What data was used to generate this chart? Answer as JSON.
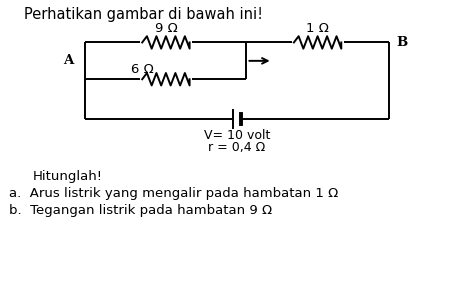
{
  "title_text": "Perhatikan gambar di bawah ini!",
  "background_color": "#ffffff",
  "line_color": "#000000",
  "font_size_title": 10.5,
  "font_size_labels": 9.5,
  "font_size_questions": 9.5,
  "resistor_9_label": "9 Ω",
  "resistor_6_label": "6 Ω",
  "resistor_1_label": "1 Ω",
  "node_A_label": "A",
  "node_B_label": "B",
  "battery_label1": "V= 10 volt",
  "battery_label2": "r = 0,4 Ω",
  "question_header": "Hitunglah!",
  "question_a": "a.  Arus listrik yang mengalir pada hambatan 1 Ω",
  "question_b": "b.  Tegangan listrik pada hambatan 9 Ω",
  "xA": 1.8,
  "xPr": 5.2,
  "xB": 8.2,
  "y_top": 8.5,
  "y_mid": 7.2,
  "y_bot": 5.8,
  "y_batt": 5.1,
  "x_bat": 5.0,
  "xlim": [
    0,
    10
  ],
  "ylim": [
    0,
    10
  ]
}
